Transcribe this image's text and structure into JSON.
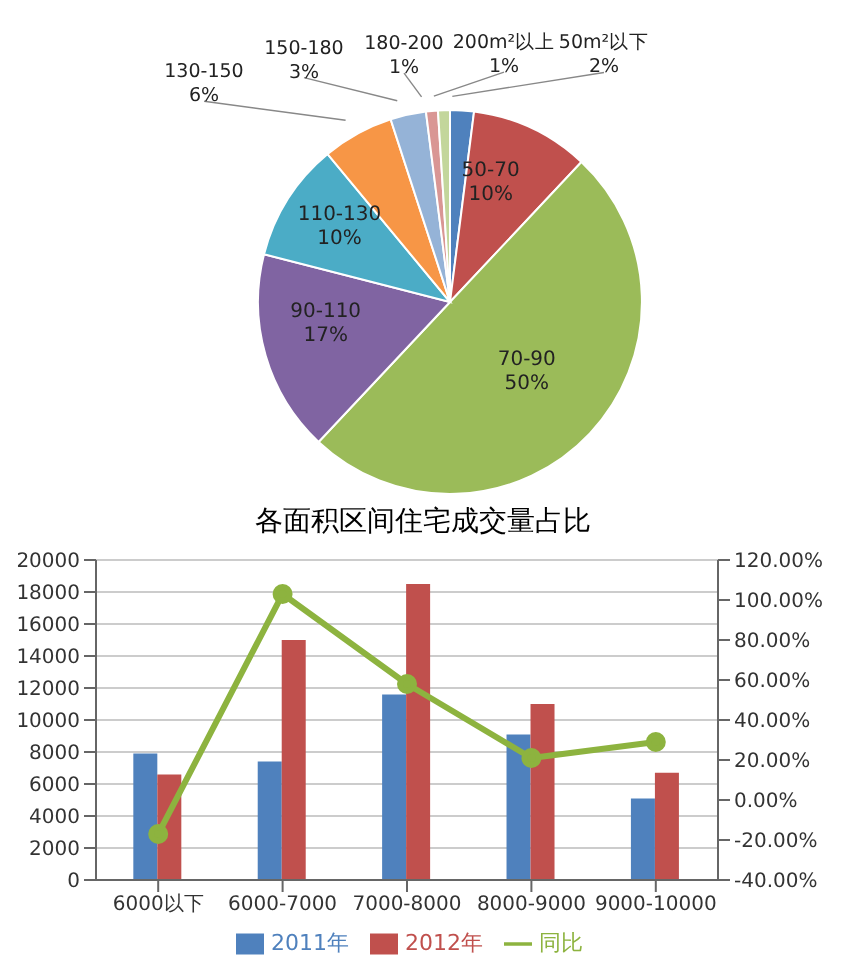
{
  "chart_data": [
    {
      "type": "pie",
      "categories": [
        "50m²以下",
        "50-70",
        "70-90",
        "90-110",
        "110-130",
        "130-150",
        "150-180",
        "180-200",
        "200m²以上"
      ],
      "values": [
        2,
        10,
        50,
        17,
        10,
        6,
        3,
        1,
        1
      ],
      "colors": [
        "#4f81bd",
        "#c0504d",
        "#9bbb59",
        "#8064a2",
        "#4bacc6",
        "#f79646",
        "#95b3d7",
        "#d99694",
        "#c3d69b"
      ],
      "value_labels": [
        "2%",
        "10%",
        "50%",
        "17%",
        "10%",
        "6%",
        "3%",
        "1%",
        "1%"
      ]
    },
    {
      "type": "bar",
      "title": "各面积区间住宅成交量占比",
      "categories": [
        "6000以下",
        "6000-7000",
        "7000-8000",
        "8000-9000",
        "9000-10000"
      ],
      "series": [
        {
          "name": "2011年",
          "color": "#4f81bd",
          "values": [
            7900,
            7400,
            11600,
            9100,
            5100
          ]
        },
        {
          "name": "2012年",
          "color": "#c0504d",
          "values": [
            6600,
            15000,
            18500,
            11000,
            6700
          ]
        },
        {
          "name": "同比",
          "type": "line",
          "axis": "y2",
          "color": "#8db33f",
          "values": [
            -17,
            103,
            58,
            21,
            29
          ]
        }
      ],
      "ylim": [
        0,
        20000
      ],
      "yticks": [
        0,
        2000,
        4000,
        6000,
        8000,
        10000,
        12000,
        14000,
        16000,
        18000,
        20000
      ],
      "y2lim": [
        -40,
        120
      ],
      "y2ticks": [
        {
          "value": -40,
          "label": "-40.00%"
        },
        {
          "value": -20,
          "label": "-20.00%"
        },
        {
          "value": 0,
          "label": "0.00%"
        },
        {
          "value": 20,
          "label": "20.00%"
        },
        {
          "value": 40,
          "label": "40.00%"
        },
        {
          "value": 60,
          "label": "60.00%"
        },
        {
          "value": 80,
          "label": "80.00%"
        },
        {
          "value": 100,
          "label": "100.00%"
        },
        {
          "value": 120,
          "label": "120.00%"
        }
      ],
      "grid": "y",
      "legend": "bottom",
      "marker": "circle"
    }
  ]
}
